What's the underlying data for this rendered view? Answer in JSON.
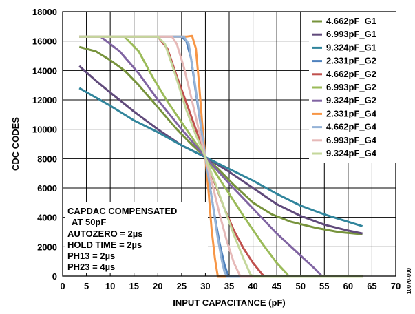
{
  "chart_data": {
    "type": "line",
    "xlabel": "INPUT CAPACITANCE (pF)",
    "ylabel": "CDC CODES",
    "xlim": [
      0,
      70
    ],
    "ylim": [
      0,
      18000
    ],
    "xticks": [
      0,
      5,
      10,
      15,
      20,
      25,
      30,
      35,
      40,
      45,
      50,
      55,
      60,
      65,
      70
    ],
    "yticks": [
      0,
      2000,
      4000,
      6000,
      8000,
      10000,
      12000,
      14000,
      16000,
      18000
    ],
    "grid": true,
    "legend_position": "top-right",
    "annotation": [
      "CAPDAC COMPENSATED",
      "AT 50pF",
      "AUTOZERO = 2µs",
      "HOLD TIME = 2µs",
      "PH13 = 2µs",
      "PH23 = 4µs"
    ],
    "figure_id": "10070-000",
    "series": [
      {
        "name": "4.662pF_G1",
        "color": "#77933c",
        "points": [
          [
            3.5,
            15600
          ],
          [
            7,
            15300
          ],
          [
            10,
            14700
          ],
          [
            13,
            14000
          ],
          [
            16,
            13000
          ],
          [
            20,
            11500
          ],
          [
            24,
            10000
          ],
          [
            27,
            9000
          ],
          [
            30,
            8100
          ],
          [
            33,
            7200
          ],
          [
            36,
            6200
          ],
          [
            40,
            5000
          ],
          [
            44,
            4200
          ],
          [
            48,
            3700
          ],
          [
            53,
            3300
          ],
          [
            58,
            3000
          ],
          [
            63,
            2850
          ]
        ]
      },
      {
        "name": "6.993pF_G1",
        "color": "#604a7b",
        "points": [
          [
            3.5,
            14300
          ],
          [
            7,
            13300
          ],
          [
            10,
            12500
          ],
          [
            15,
            11200
          ],
          [
            20,
            10000
          ],
          [
            25,
            8900
          ],
          [
            30,
            8100
          ],
          [
            35,
            7100
          ],
          [
            40,
            6000
          ],
          [
            45,
            4900
          ],
          [
            50,
            4100
          ],
          [
            55,
            3500
          ],
          [
            60,
            3100
          ],
          [
            63,
            2900
          ]
        ]
      },
      {
        "name": "9.324pF_G1",
        "color": "#31859c",
        "points": [
          [
            3.5,
            12800
          ],
          [
            10,
            11600
          ],
          [
            15,
            10600
          ],
          [
            20,
            9800
          ],
          [
            25,
            8900
          ],
          [
            30,
            8100
          ],
          [
            35,
            7300
          ],
          [
            40,
            6500
          ],
          [
            45,
            5600
          ],
          [
            50,
            4800
          ],
          [
            55,
            4200
          ],
          [
            60,
            3700
          ],
          [
            63,
            3400
          ]
        ]
      },
      {
        "name": "2.331pF_G2",
        "color": "#4f81bd",
        "points": [
          [
            3.5,
            16300
          ],
          [
            25,
            16300
          ],
          [
            26,
            16000
          ],
          [
            27,
            14800
          ],
          [
            28,
            12500
          ],
          [
            29,
            10300
          ],
          [
            30,
            8100
          ],
          [
            31,
            6000
          ],
          [
            32,
            4000
          ],
          [
            33,
            2200
          ],
          [
            34,
            800
          ],
          [
            34.8,
            0
          ],
          [
            63,
            0
          ]
        ]
      },
      {
        "name": "4.662pF_G2",
        "color": "#c0504d",
        "points": [
          [
            3.5,
            16300
          ],
          [
            20,
            16300
          ],
          [
            22,
            15500
          ],
          [
            24,
            13600
          ],
          [
            26,
            11800
          ],
          [
            28,
            10000
          ],
          [
            30,
            8100
          ],
          [
            32,
            6300
          ],
          [
            34,
            4600
          ],
          [
            36,
            3100
          ],
          [
            38,
            1900
          ],
          [
            40,
            900
          ],
          [
            42,
            100
          ],
          [
            42.5,
            0
          ],
          [
            63,
            0
          ]
        ]
      },
      {
        "name": "6.993pF_G2",
        "color": "#9bbb59",
        "points": [
          [
            3.5,
            16300
          ],
          [
            13,
            16300
          ],
          [
            16,
            15300
          ],
          [
            19,
            13500
          ],
          [
            22,
            11900
          ],
          [
            26,
            10000
          ],
          [
            30,
            8100
          ],
          [
            34,
            6100
          ],
          [
            38,
            4100
          ],
          [
            42,
            2200
          ],
          [
            45,
            900
          ],
          [
            47,
            200
          ],
          [
            47.5,
            0
          ],
          [
            63,
            0
          ]
        ]
      },
      {
        "name": "9.324pF_G2",
        "color": "#8064a2",
        "points": [
          [
            3.5,
            16300
          ],
          [
            8,
            16300
          ],
          [
            12,
            15300
          ],
          [
            16,
            13800
          ],
          [
            20,
            12000
          ],
          [
            25,
            10000
          ],
          [
            30,
            8100
          ],
          [
            35,
            6300
          ],
          [
            40,
            4600
          ],
          [
            45,
            2900
          ],
          [
            50,
            1400
          ],
          [
            53,
            500
          ],
          [
            54.5,
            0
          ],
          [
            63,
            0
          ]
        ]
      },
      {
        "name": "2.331pF_G4",
        "color": "#f79646",
        "points": [
          [
            3.5,
            16300
          ],
          [
            26,
            16300
          ],
          [
            27.2,
            16350
          ],
          [
            28,
            15500
          ],
          [
            28.7,
            13000
          ],
          [
            29.3,
            10500
          ],
          [
            30,
            8100
          ],
          [
            30.7,
            5600
          ],
          [
            31.3,
            3200
          ],
          [
            32,
            1200
          ],
          [
            32.6,
            0
          ],
          [
            63,
            0
          ]
        ]
      },
      {
        "name": "4.662pF_G4",
        "color": "#95b3d7",
        "points": [
          [
            3.5,
            16300
          ],
          [
            25.5,
            16300
          ],
          [
            26.5,
            15800
          ],
          [
            27.5,
            13800
          ],
          [
            28.5,
            11500
          ],
          [
            30,
            8100
          ],
          [
            31.5,
            5000
          ],
          [
            32.5,
            2800
          ],
          [
            33.5,
            1000
          ],
          [
            34,
            300
          ],
          [
            34.5,
            0
          ],
          [
            63,
            0
          ]
        ]
      },
      {
        "name": "6.993pF_G4",
        "color": "#e6b9b8",
        "points": [
          [
            3.5,
            16300
          ],
          [
            23,
            16300
          ],
          [
            24,
            15800
          ],
          [
            25.5,
            14200
          ],
          [
            27,
            12200
          ],
          [
            28.5,
            10100
          ],
          [
            30,
            8100
          ],
          [
            31.5,
            6200
          ],
          [
            33,
            4200
          ],
          [
            34.5,
            2400
          ],
          [
            36,
            900
          ],
          [
            37.3,
            0
          ],
          [
            63,
            0
          ]
        ]
      },
      {
        "name": "9.324pF_G4",
        "color": "#c4d79b",
        "points": [
          [
            3.5,
            16300
          ],
          [
            20,
            16300
          ],
          [
            21.5,
            15800
          ],
          [
            23.5,
            13900
          ],
          [
            26,
            11300
          ],
          [
            28,
            9600
          ],
          [
            30,
            8100
          ],
          [
            32,
            6400
          ],
          [
            34,
            4600
          ],
          [
            36,
            2800
          ],
          [
            38,
            1200
          ],
          [
            39.5,
            100
          ],
          [
            40,
            0
          ],
          [
            63,
            0
          ]
        ]
      }
    ]
  }
}
